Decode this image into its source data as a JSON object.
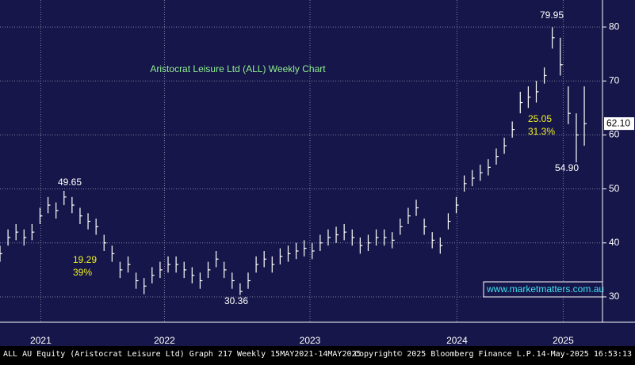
{
  "chart_data": {
    "type": "ohlc",
    "title": "Aristocrat Leisure Ltd (ALL) Weekly Chart",
    "x": [
      2021.37,
      2021.425,
      2021.48,
      2021.535,
      2021.59,
      2021.645,
      2021.7,
      2021.755,
      2021.81,
      2021.865,
      2021.92,
      2021.975,
      2022.03,
      2022.085,
      2022.14,
      2022.195,
      2022.25,
      2022.305,
      2022.36,
      2022.415,
      2022.47,
      2022.525,
      2022.58,
      2022.635,
      2022.69,
      2022.745,
      2022.8,
      2022.855,
      2022.91,
      2022.965,
      2023.02,
      2023.075,
      2023.13,
      2023.185,
      2023.24,
      2023.295,
      2023.35,
      2023.405,
      2023.46,
      2023.515,
      2023.57,
      2023.625,
      2023.68,
      2023.735,
      2023.79,
      2023.845,
      2023.9,
      2023.955,
      2024.01,
      2024.065,
      2024.12,
      2024.175,
      2024.23,
      2024.285,
      2024.34,
      2024.395,
      2024.45,
      2024.505,
      2024.56,
      2024.615,
      2024.67,
      2024.725,
      2024.78,
      2024.835,
      2024.89,
      2024.945,
      2025.0,
      2025.055,
      2025.11,
      2025.165,
      2025.22,
      2025.275,
      2025.33,
      2025.385
    ],
    "series": [
      {
        "name": "High",
        "values": [
          39.5,
          42.5,
          43.5,
          42.5,
          43.5,
          46.5,
          48.5,
          47.5,
          49.65,
          48.5,
          46.5,
          45.5,
          44.5,
          41.5,
          39.5,
          36.5,
          37.5,
          34.5,
          33.5,
          35.5,
          36.5,
          37.5,
          37.5,
          36.5,
          35.5,
          34.5,
          36.5,
          38.5,
          36.5,
          34.5,
          32.5,
          34.5,
          37.5,
          38.5,
          37.5,
          39,
          39.5,
          40,
          40.5,
          40,
          41.5,
          42.5,
          43,
          43.5,
          42.5,
          41,
          41.5,
          42.5,
          42.5,
          42,
          44.5,
          46.5,
          48,
          44.5,
          42,
          41,
          45.5,
          48.5,
          52.5,
          53.5,
          54.5,
          55.5,
          57.5,
          59.5,
          62.5,
          68,
          69,
          70,
          72.5,
          79.95,
          78,
          69,
          64,
          69
        ]
      },
      {
        "name": "Low",
        "values": [
          36.5,
          39.5,
          40.5,
          39.5,
          40.5,
          43.5,
          45.5,
          44.5,
          47,
          45.5,
          43.5,
          42.5,
          41.5,
          38.5,
          36.5,
          33.5,
          34.5,
          31.5,
          30.5,
          32.5,
          33.5,
          34.5,
          34.5,
          33.5,
          32.5,
          31.5,
          33.5,
          35.5,
          33.5,
          31.5,
          30.36,
          31.5,
          34.5,
          35.5,
          34.5,
          36,
          36.5,
          37,
          37.5,
          37,
          38.5,
          39.5,
          40,
          40.5,
          39.5,
          38,
          38.5,
          39.5,
          39.5,
          39,
          41.5,
          43.5,
          45,
          41.5,
          39,
          38,
          42.5,
          45.5,
          49.5,
          50.5,
          51.5,
          52.5,
          54.5,
          56.5,
          59.5,
          64,
          65,
          66,
          69.5,
          76,
          71,
          62,
          54.9,
          58
        ]
      },
      {
        "name": "Close",
        "values": [
          38,
          41,
          42,
          41,
          42,
          45,
          47,
          46,
          48.5,
          47,
          45,
          44,
          43,
          40,
          38,
          35,
          36,
          33,
          32,
          34,
          35,
          36,
          36,
          35,
          34,
          33,
          35,
          37,
          35,
          33,
          31,
          33,
          36,
          37,
          36,
          37.5,
          38,
          38.5,
          39,
          38.5,
          40,
          41,
          41.5,
          42,
          41,
          39.5,
          40,
          41,
          41,
          40.5,
          43,
          45,
          46.5,
          43,
          40.5,
          39.5,
          44,
          47,
          51,
          52,
          53,
          54,
          56,
          58,
          61,
          66,
          67,
          68,
          71,
          78,
          73,
          64,
          60,
          62.1
        ]
      }
    ],
    "color": "#ffffff",
    "xlim": [
      2021.37,
      2025.51
    ],
    "xticks": [
      {
        "value": 2021.65,
        "label": "2021"
      },
      {
        "value": 2022.5,
        "label": "2022"
      },
      {
        "value": 2023.5,
        "label": "2023"
      },
      {
        "value": 2024.51,
        "label": "2024"
      },
      {
        "value": 2025.24,
        "label": "2025"
      }
    ],
    "ylim": [
      25.3,
      85
    ],
    "yticks": [
      30,
      40,
      50,
      60,
      70,
      80
    ],
    "grid": true,
    "last_price": {
      "value": 62.1,
      "label": "62.10"
    },
    "annotations": [
      "79.95",
      "49.65",
      "30.36",
      "54.90",
      "19.29",
      "39%",
      "25.05",
      "31.3%"
    ],
    "watermark": "www.marketmatters.com.au",
    "footer": [
      "ALL AU Equity (Aristocrat Leisure Ltd) Graph 217  Weekly 15MAY2021-14MAY2025",
      "Copyright© 2025 Bloomberg Finance L.P.",
      "14-May-2025 16:53:13"
    ]
  }
}
